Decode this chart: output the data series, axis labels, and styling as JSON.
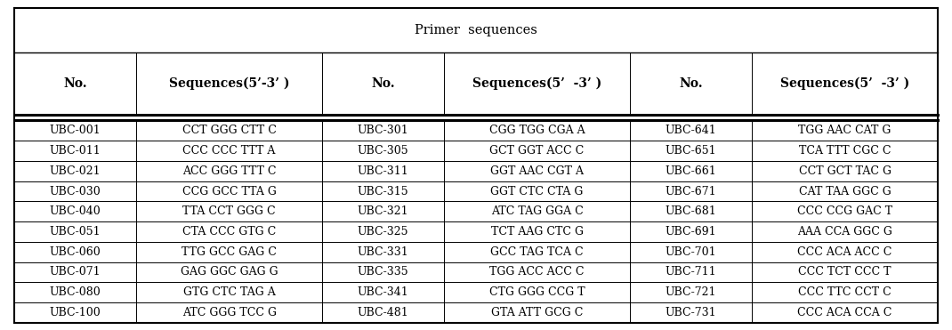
{
  "title": "Primer  sequences",
  "col_headers": [
    "No.",
    "Sequences(5’-3’ )",
    "No.",
    "Sequences(5’  -3’ )",
    "No.",
    "Sequences(5’  -3’ )"
  ],
  "rows": [
    [
      "UBC-001",
      "CCT GGG CTT C",
      "UBC-301",
      "CGG TGG CGA A",
      "UBC-641",
      "TGG AAC CAT G"
    ],
    [
      "UBC-011",
      "CCC CCC TTT A",
      "UBC-305",
      "GCT GGT ACC C",
      "UBC-651",
      "TCA TTT CGC C"
    ],
    [
      "UBC-021",
      "ACC GGG TTT C",
      "UBC-311",
      "GGT AAC CGT A",
      "UBC-661",
      "CCT GCT TAC G"
    ],
    [
      "UBC-030",
      "CCG GCC TTA G",
      "UBC-315",
      "GGT CTC CTA G",
      "UBC-671",
      "CAT TAA GGC G"
    ],
    [
      "UBC-040",
      "TTA CCT GGG C",
      "UBC-321",
      "ATC TAG GGA C",
      "UBC-681",
      "CCC CCG GAC T"
    ],
    [
      "UBC-051",
      "CTA CCC GTG C",
      "UBC-325",
      "TCT AAG CTC G",
      "UBC-691",
      "AAA CCA GGC G"
    ],
    [
      "UBC-060",
      "TTG GCC GAG C",
      "UBC-331",
      "GCC TAG TCA C",
      "UBC-701",
      "CCC ACA ACC C"
    ],
    [
      "UBC-071",
      "GAG GGC GAG G",
      "UBC-335",
      "TGG ACC ACC C",
      "UBC-711",
      "CCC TCT CCC T"
    ],
    [
      "UBC-080",
      "GTG CTC TAG A",
      "UBC-341",
      "CTG GGG CCG T",
      "UBC-721",
      "CCC TTC CCT C"
    ],
    [
      "UBC-100",
      "ATC GGG TCC G",
      "UBC-481",
      "GTA ATT GCG C",
      "UBC-731",
      "CCC ACA CCA C"
    ]
  ],
  "bg_color": "#ffffff",
  "text_color": "#000000",
  "title_fontsize": 10.5,
  "header_fontsize": 10,
  "cell_fontsize": 9,
  "col_props": [
    0.115,
    0.175,
    0.115,
    0.175,
    0.115,
    0.175
  ]
}
